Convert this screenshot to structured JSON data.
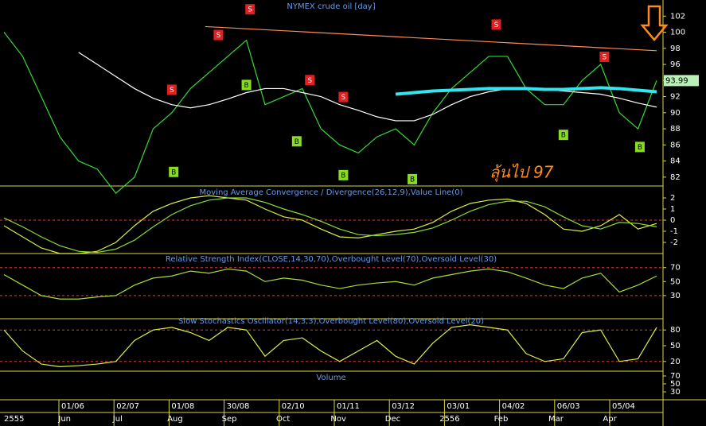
{
  "chart_data": [
    {
      "type": "line",
      "title": "NYMEX crude oil [day]",
      "ylim": [
        81,
        104
      ],
      "yticks": [
        82,
        84,
        86,
        88,
        90,
        92,
        94,
        96,
        98,
        100,
        102
      ],
      "series": [
        {
          "color": "#33dd33",
          "values": [
            100,
            97,
            92,
            87,
            84,
            83,
            80,
            82,
            88,
            90,
            93,
            95,
            97,
            99,
            91,
            92,
            93,
            88,
            86,
            85,
            87,
            88,
            86,
            90,
            93,
            95,
            97,
            97,
            93,
            91,
            91,
            94,
            96,
            90,
            88,
            94
          ]
        },
        {
          "color": "#ffffff",
          "values": [
            null,
            null,
            null,
            null,
            97.5,
            96,
            94.5,
            93,
            91.8,
            91,
            90.6,
            91,
            91.7,
            92.5,
            93,
            93,
            92.5,
            92,
            91,
            90.3,
            89.5,
            89,
            89,
            89.8,
            91,
            92,
            92.6,
            93,
            93,
            92.9,
            92.7,
            92.5,
            92.3,
            91.8,
            91.2,
            90.7
          ]
        },
        {
          "color": "#33e5ee",
          "values": [
            null,
            null,
            null,
            null,
            null,
            null,
            null,
            null,
            null,
            null,
            null,
            null,
            null,
            null,
            null,
            null,
            null,
            null,
            null,
            null,
            null,
            92.3,
            92.5,
            92.7,
            92.8,
            92.9,
            93,
            93,
            93,
            92.9,
            92.9,
            93,
            93.1,
            93,
            92.8,
            92.6
          ]
        }
      ],
      "trendline": {
        "x": [
          10.8,
          35
        ],
        "values": [
          100.7,
          97.7
        ],
        "color": "#ff8c55"
      },
      "signals": [
        {
          "label": "S",
          "x": 13.2,
          "value": 102.8
        },
        {
          "label": "S",
          "x": 11.5,
          "value": 99.6
        },
        {
          "label": "S",
          "x": 9.0,
          "value": 92.8
        },
        {
          "label": "S",
          "x": 16.4,
          "value": 94
        },
        {
          "label": "S",
          "x": 18.2,
          "value": 91.9
        },
        {
          "label": "S",
          "x": 26.4,
          "value": 100.9
        },
        {
          "label": "S",
          "x": 32.2,
          "value": 96.9
        },
        {
          "label": "B",
          "x": 9.1,
          "value": 82.6
        },
        {
          "label": "B",
          "x": 13.0,
          "value": 93.4
        },
        {
          "label": "B",
          "x": 15.7,
          "value": 86.4
        },
        {
          "label": "B",
          "x": 18.2,
          "value": 82.2
        },
        {
          "label": "B",
          "x": 21.9,
          "value": 81.7
        },
        {
          "label": "B",
          "x": 30.0,
          "value": 87.2
        },
        {
          "label": "B",
          "x": 34.1,
          "value": 85.7
        }
      ],
      "last_price": 93.99,
      "annotation": "ลุ้นไป 97"
    },
    {
      "type": "line",
      "title": "Moving Average Convergence / Divergence(26,12,9),Value Line(0)",
      "ylim": [
        -2.93,
        3
      ],
      "yticks": [
        -2,
        -1,
        0,
        1,
        2
      ],
      "levels": [
        0
      ],
      "series": [
        {
          "color": "#ddee44",
          "values": [
            -0.5,
            -1.5,
            -2.5,
            -3,
            -3,
            -2.8,
            -2,
            -0.5,
            0.8,
            1.5,
            2,
            2.2,
            2,
            1.8,
            1,
            0.3,
            0,
            -0.8,
            -1.5,
            -1.6,
            -1.3,
            -1,
            -0.8,
            -0.2,
            0.8,
            1.5,
            1.8,
            1.9,
            1.5,
            0.5,
            -0.8,
            -1,
            -0.5,
            0.5,
            -0.8,
            -0.3
          ]
        },
        {
          "color": "#88dd33",
          "values": [
            0.2,
            -0.6,
            -1.5,
            -2.3,
            -2.8,
            -2.9,
            -2.6,
            -1.8,
            -0.6,
            0.5,
            1.3,
            1.8,
            2,
            2,
            1.6,
            1,
            0.5,
            -0.1,
            -0.8,
            -1.3,
            -1.4,
            -1.3,
            -1.1,
            -0.7,
            0,
            0.8,
            1.4,
            1.7,
            1.7,
            1.2,
            0.3,
            -0.5,
            -0.8,
            -0.2,
            -0.3,
            -0.6
          ]
        }
      ]
    },
    {
      "type": "line",
      "title": "Relative Strength Index(CLOSE,14,30,70),Overbought Level(70),Oversold Level(30)",
      "ylim": [
        -2,
        89
      ],
      "yticks": [
        30,
        50,
        70
      ],
      "levels": [
        70,
        30
      ],
      "series": [
        {
          "color": "#aadd33",
          "values": [
            60,
            45,
            30,
            25,
            25,
            28,
            30,
            45,
            55,
            58,
            65,
            62,
            68,
            65,
            50,
            55,
            52,
            45,
            40,
            45,
            48,
            50,
            45,
            55,
            60,
            65,
            68,
            64,
            55,
            45,
            40,
            55,
            62,
            35,
            45,
            58
          ]
        }
      ]
    },
    {
      "type": "line",
      "title": "Slow Stochastics Oscillator(14,3,3),Overbought Level(80),Oversold Level(20)",
      "ylim": [
        3,
        100
      ],
      "yticks": [
        20,
        50,
        80
      ],
      "levels": [
        80,
        20
      ],
      "series": [
        {
          "color": "#ddee44",
          "values": [
            80,
            40,
            15,
            10,
            12,
            15,
            20,
            60,
            80,
            85,
            75,
            60,
            85,
            80,
            30,
            60,
            65,
            40,
            20,
            40,
            60,
            30,
            15,
            55,
            85,
            90,
            85,
            80,
            35,
            20,
            25,
            75,
            80,
            20,
            25,
            85
          ]
        }
      ]
    },
    {
      "type": "volume",
      "title": "Volume",
      "ylim": [
        10,
        80
      ],
      "yticks": [
        30,
        50,
        70
      ]
    }
  ],
  "x_axis": {
    "dates": [
      "01/06",
      "02/07",
      "01/08",
      "30/08",
      "02/10",
      "01/11",
      "03/12",
      "03/01",
      "04/02",
      "06/03",
      "05/04"
    ],
    "periods": [
      "2555",
      "Jun",
      "Jul",
      "Aug",
      "Sep",
      "Oct",
      "Nov",
      "Dec",
      "2556",
      "Feb",
      "Mar",
      "Apr"
    ]
  }
}
